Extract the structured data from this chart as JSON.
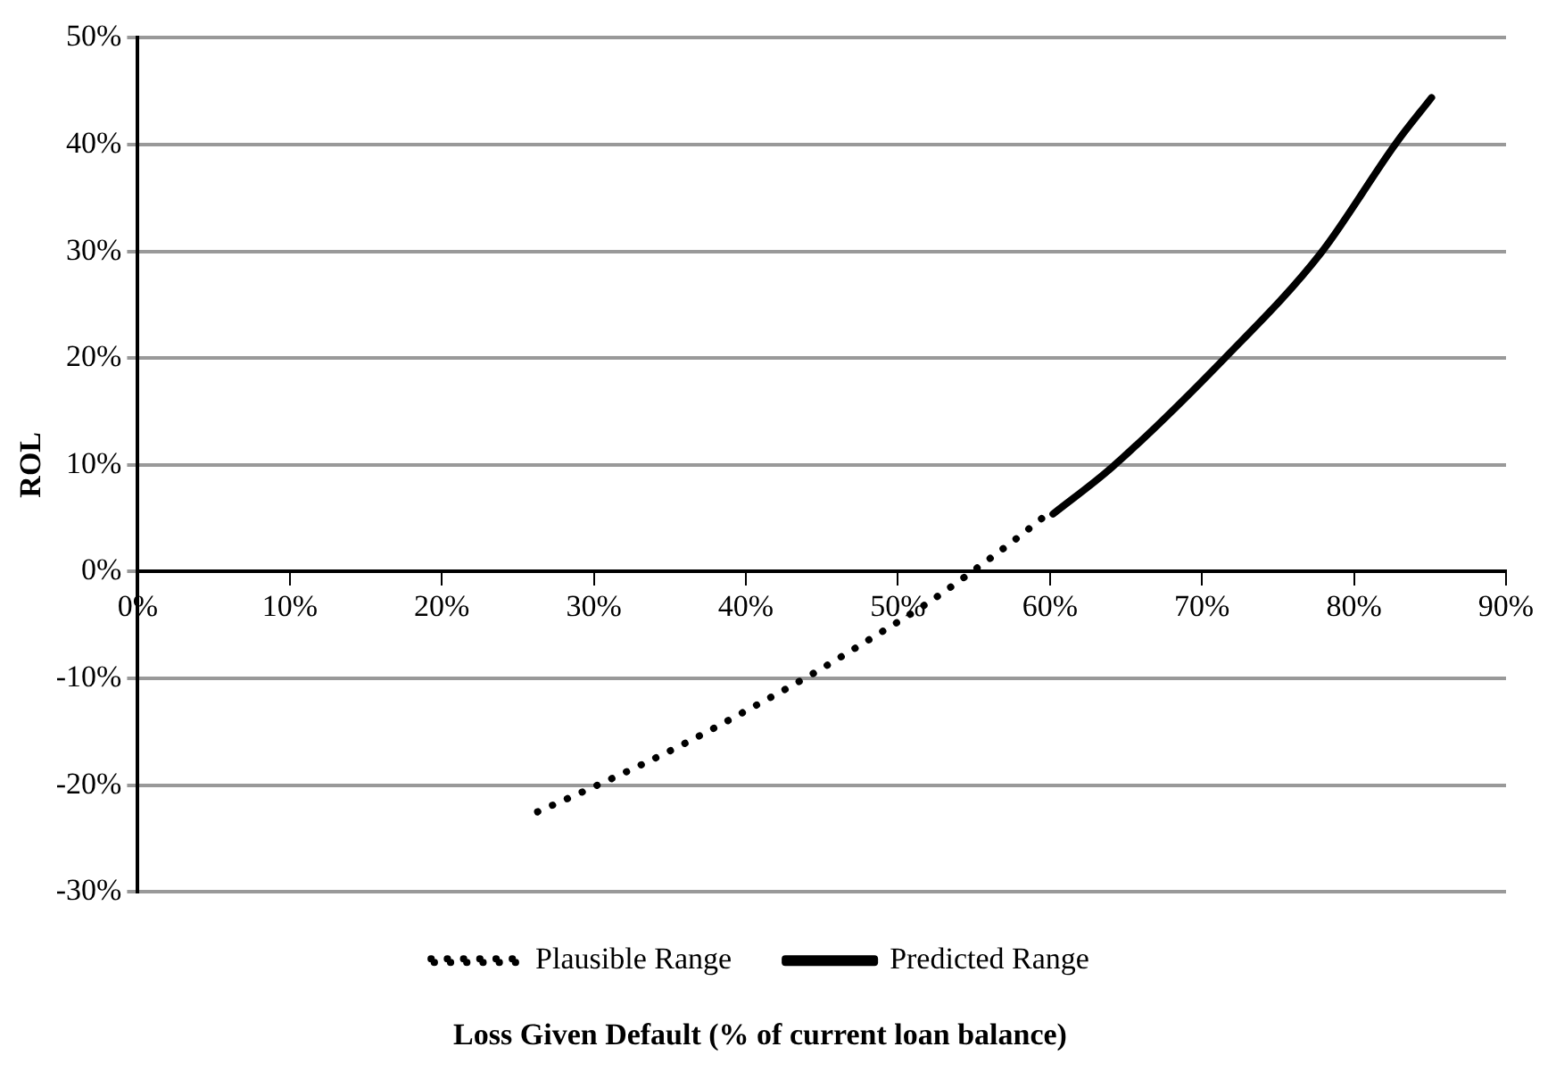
{
  "chart_data": {
    "type": "line",
    "xlabel": "Loss Given Default (% of current loan balance)",
    "ylabel": "ROL",
    "xlim": [
      0,
      90
    ],
    "xticks": [
      {
        "value": 0,
        "label": "0%"
      },
      {
        "value": 10,
        "label": "10%"
      },
      {
        "value": 20,
        "label": "20%"
      },
      {
        "value": 30,
        "label": "30%"
      },
      {
        "value": 40,
        "label": "40%"
      },
      {
        "value": 50,
        "label": "50%"
      },
      {
        "value": 60,
        "label": "60%"
      },
      {
        "value": 70,
        "label": "70%"
      },
      {
        "value": 80,
        "label": "80%"
      },
      {
        "value": 90,
        "label": "90%"
      }
    ],
    "ylim": [
      -30,
      50
    ],
    "yticks": [
      {
        "value": -30,
        "label": "-30%"
      },
      {
        "value": -20,
        "label": "-20%"
      },
      {
        "value": -10,
        "label": "-10%"
      },
      {
        "value": 0,
        "label": "0%"
      },
      {
        "value": 10,
        "label": "10%"
      },
      {
        "value": 20,
        "label": "20%"
      },
      {
        "value": 30,
        "label": "30%"
      },
      {
        "value": 40,
        "label": "40%"
      },
      {
        "value": 50,
        "label": "50%"
      }
    ],
    "grid": "y",
    "legend": "bottom",
    "marker": "none",
    "series": [
      {
        "name": "Plausible Range",
        "color": "#000000",
        "line_style": "dotted",
        "x": [
          26.3,
          30.4,
          35.7,
          40.7,
          44.6,
          48.3,
          52.0,
          54.3,
          57.8,
          60.1
        ],
        "values": [
          -22.5,
          -19.9,
          -16.3,
          -12.5,
          -9.4,
          -6.2,
          -2.9,
          -0.6,
          3.1,
          5.7
        ]
      },
      {
        "name": "Predicted Range",
        "color": "#000000",
        "line_style": "solid",
        "x": [
          60.2,
          64.1,
          71.5,
          77.8,
          82.8,
          85.1
        ],
        "values": [
          5.4,
          9.8,
          20.0,
          29.8,
          40.2,
          44.4
        ]
      }
    ]
  }
}
